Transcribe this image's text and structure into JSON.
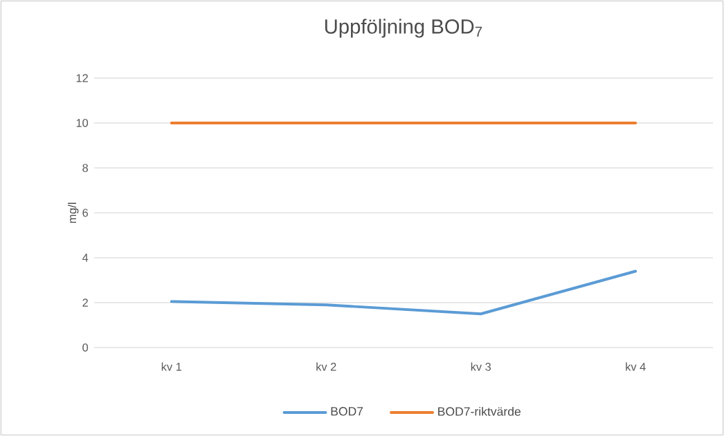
{
  "chart_data": {
    "type": "line",
    "title": "Uppföljning BOD$_{7}$",
    "ylabel": "mg/l",
    "categories": [
      "kv 1",
      "kv 2",
      "kv 3",
      "kv 4"
    ],
    "series": [
      {
        "name": "BOD7",
        "color": "#5b9bd5",
        "values": [
          2.05,
          1.9,
          1.5,
          3.4
        ]
      },
      {
        "name": "BOD7-riktvärde",
        "color": "#ed7d31",
        "values": [
          10,
          10,
          10,
          10
        ]
      }
    ],
    "ylim": [
      0,
      12
    ],
    "yticks": [
      0,
      2,
      4,
      6,
      8,
      10,
      12
    ],
    "grid": "y",
    "legend": "bottom",
    "marker": "none",
    "line_style": "solid"
  }
}
